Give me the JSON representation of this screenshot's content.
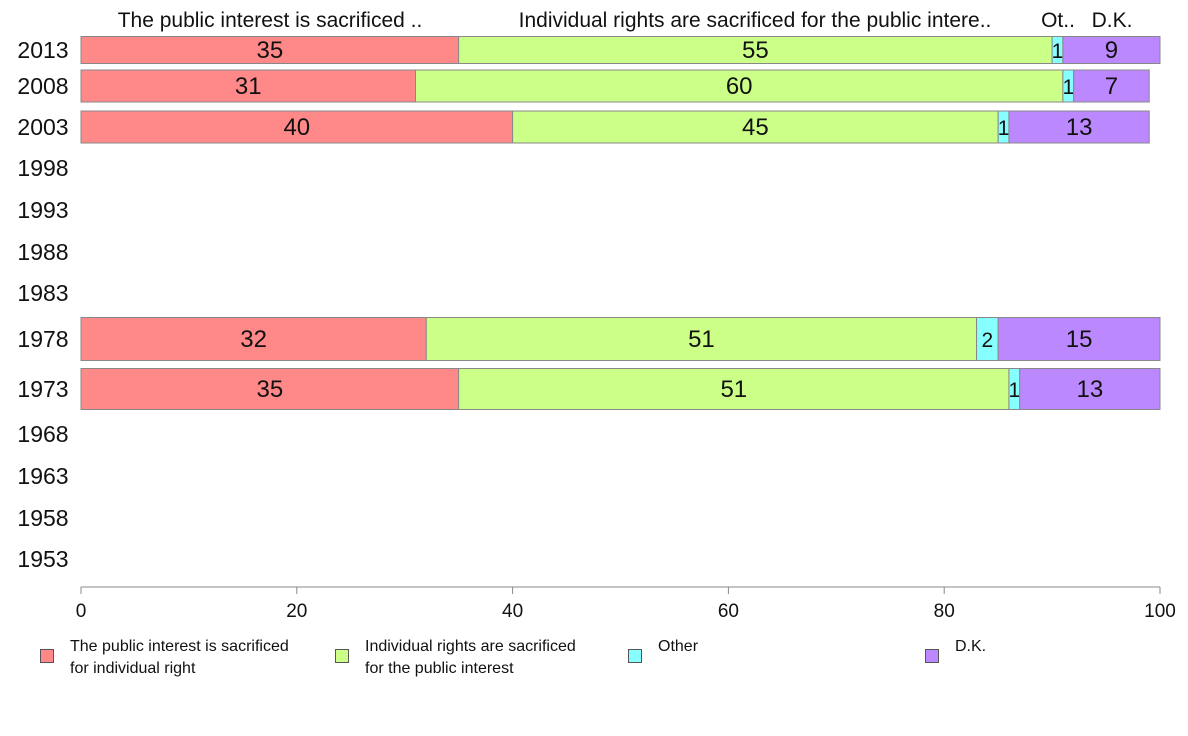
{
  "chart_data": {
    "type": "bar",
    "orientation": "horizontal",
    "stacked": true,
    "categories": [
      "2013",
      "2008",
      "2003",
      "1998",
      "1993",
      "1988",
      "1983",
      "1978",
      "1973",
      "1968",
      "1963",
      "1958",
      "1953"
    ],
    "series": [
      {
        "name": "The public interest is sacrificed for individual right",
        "header": "The public interest is sacrificed ..",
        "color": "#ff8888",
        "values": [
          35,
          31,
          40,
          null,
          null,
          null,
          null,
          32,
          35,
          null,
          null,
          null,
          null
        ]
      },
      {
        "name": "Individual rights are sacrificed for the public interest",
        "header": "Individual rights are sacrificed for the public intere..",
        "color": "#ccff88",
        "values": [
          55,
          60,
          45,
          null,
          null,
          null,
          null,
          51,
          51,
          null,
          null,
          null,
          null
        ]
      },
      {
        "name": "Other",
        "header": "Ot..",
        "color": "#88ffff",
        "values": [
          1,
          1,
          1,
          null,
          null,
          null,
          null,
          2,
          1,
          null,
          null,
          null,
          null
        ]
      },
      {
        "name": "D.K.",
        "header": "D.K.",
        "color": "#bb88ff",
        "values": [
          9,
          7,
          13,
          null,
          null,
          null,
          null,
          15,
          13,
          null,
          null,
          null,
          null
        ]
      }
    ],
    "xlim": [
      0,
      100
    ],
    "xticks": [
      "0",
      "20",
      "40",
      "60",
      "80",
      "100"
    ],
    "grid": false,
    "legend_position": "bottom"
  },
  "legend": {
    "items": [
      {
        "label": "The public interest is sacrificed\nfor individual right",
        "color": "#ff8888"
      },
      {
        "label": "Individual rights are sacrificed\nfor the public interest",
        "color": "#ccff88"
      },
      {
        "label": "Other",
        "color": "#88ffff"
      },
      {
        "label": "D.K.",
        "color": "#bb88ff"
      }
    ]
  }
}
